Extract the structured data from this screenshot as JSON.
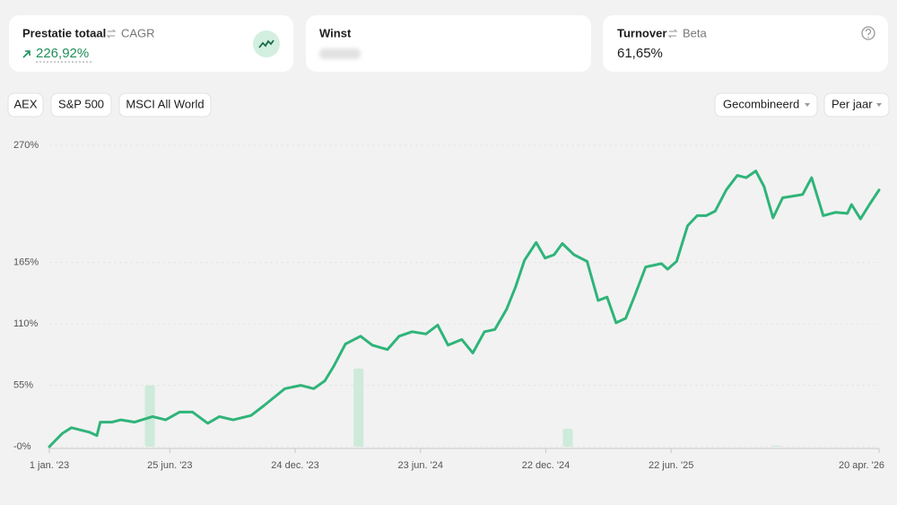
{
  "cards": [
    {
      "title": "Prestatie totaal",
      "alt": "CAGR",
      "value": "226,92%"
    },
    {
      "title": "Winst"
    },
    {
      "title": "Turnover",
      "alt": "Beta",
      "value": "61,65%"
    }
  ],
  "benchmarks": [
    "AEX",
    "S&P 500",
    "MSCI All World"
  ],
  "controls": [
    "Gecombineerd",
    "Per jaar"
  ],
  "chart_data": {
    "type": "line",
    "x": [
      "2023-01-01",
      "2023-01-20",
      "2023-02-02",
      "2023-02-15",
      "2023-02-28",
      "2023-03-11",
      "2023-03-16",
      "2023-04-02",
      "2023-04-15",
      "2023-05-05",
      "2023-05-31",
      "2023-06-19",
      "2023-07-09",
      "2023-07-28",
      "2023-08-19",
      "2023-09-05",
      "2023-09-25",
      "2023-10-21",
      "2023-11-09",
      "2023-11-29",
      "2023-12-09",
      "2024-01-01",
      "2024-01-20",
      "2024-02-05",
      "2024-02-18",
      "2024-03-06",
      "2024-03-28",
      "2024-04-14",
      "2024-05-06",
      "2024-05-23",
      "2024-06-11",
      "2024-07-01",
      "2024-07-18",
      "2024-08-02",
      "2024-08-22",
      "2024-09-07",
      "2024-09-24",
      "2024-10-09",
      "2024-10-26",
      "2024-11-08",
      "2024-11-21",
      "2024-12-08",
      "2024-12-21",
      "2025-01-03",
      "2025-01-15",
      "2025-02-01",
      "2025-02-20",
      "2025-03-08",
      "2025-03-21",
      "2025-04-03",
      "2025-04-17",
      "2025-04-30",
      "2025-05-16",
      "2025-06-08",
      "2025-06-17",
      "2025-06-30",
      "2025-07-16",
      "2025-07-30",
      "2025-08-12",
      "2025-08-25",
      "2025-09-10",
      "2025-09-26",
      "2025-10-09",
      "2025-10-23",
      "2025-11-04",
      "2025-11-17",
      "2025-12-01",
      "2025-12-21",
      "2025-12-30",
      "2026-01-12",
      "2026-01-29",
      "2026-02-16",
      "2026-03-05",
      "2026-03-11",
      "2026-03-24",
      "2026-04-06",
      "2026-04-20"
    ],
    "series": [
      {
        "color": "#2fb479",
        "values": [
          0,
          12,
          17,
          15,
          13,
          10,
          22,
          22,
          24,
          22,
          27,
          24,
          31,
          31,
          21,
          27,
          24,
          28,
          37,
          47,
          52,
          55,
          52,
          59,
          72,
          92,
          99,
          91,
          87,
          99,
          103,
          101,
          109,
          91,
          96,
          84,
          103,
          105,
          123,
          143,
          167,
          183,
          169,
          172,
          182,
          172,
          166,
          131,
          134,
          111,
          115,
          135,
          161,
          164,
          159,
          166,
          198,
          207,
          207,
          211,
          230,
          243,
          241,
          247,
          233,
          205,
          223,
          225,
          226,
          241,
          207,
          210,
          209,
          217,
          204,
          217,
          230
        ]
      }
    ],
    "bars": {
      "color": "#cdeadb",
      "x": [
        "2023-05-27",
        "2024-03-25",
        "2025-01-23",
        "2025-11-22"
      ],
      "values": [
        55,
        70,
        16,
        1
      ]
    },
    "xlim": [
      "2023-01-01",
      "2026-04-20"
    ],
    "xticks": [
      {
        "value": "2023-01-01",
        "label": "1 jan. '23"
      },
      {
        "value": "2023-06-25",
        "label": "25 jun. '23"
      },
      {
        "value": "2023-12-24",
        "label": "24 dec. '23"
      },
      {
        "value": "2024-06-23",
        "label": "23 jun. '24"
      },
      {
        "value": "2024-12-22",
        "label": "22 dec. '24"
      },
      {
        "value": "2025-06-22",
        "label": "22 jun. '25"
      },
      {
        "value": "2026-04-20",
        "label": "20 apr. '26"
      }
    ],
    "ylim": [
      0,
      270
    ],
    "yticks": [
      {
        "value": 0,
        "label": "-0%"
      },
      {
        "value": 55,
        "label": "55%"
      },
      {
        "value": 110,
        "label": "110%"
      },
      {
        "value": 165,
        "label": "165%"
      },
      {
        "value": 270,
        "label": "270%"
      }
    ],
    "grid": true
  }
}
